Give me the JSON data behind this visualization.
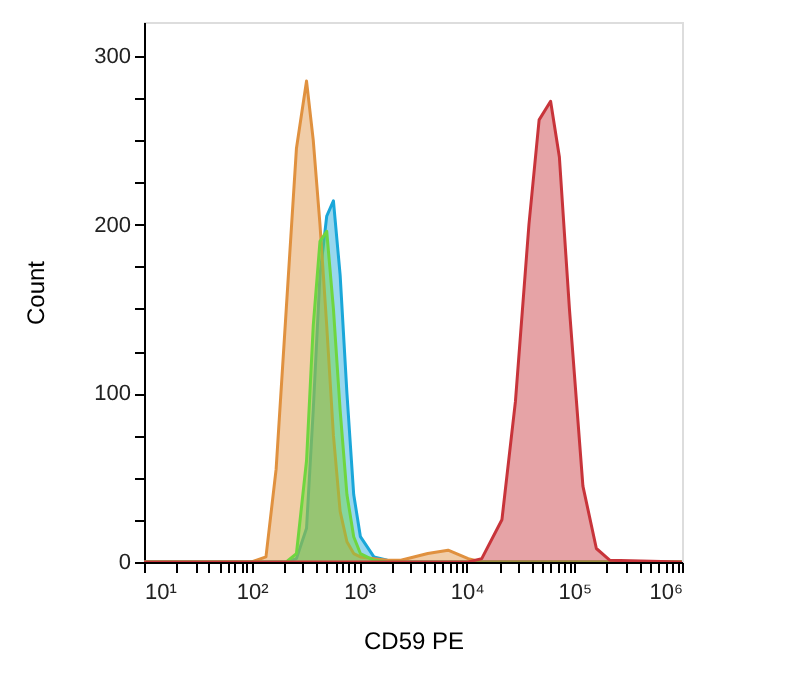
{
  "chart_data": {
    "type": "area",
    "xlabel": "CD59 PE",
    "ylabel": "Count",
    "log": "x",
    "grid": false,
    "x": [
      10,
      100,
      136,
      169,
      210,
      261,
      324,
      374,
      432,
      499,
      576,
      665,
      769,
      889,
      1026,
      1370,
      1829,
      2440,
      4340,
      6700,
      10300,
      13770,
      21200,
      28300,
      37800,
      47000,
      60100,
      72500,
      89900,
      120000,
      160000,
      214000,
      1000000
    ],
    "series": [
      {
        "color": "#1aa7d9",
        "values": [
          0,
          0,
          0,
          0,
          0,
          2,
          20,
          90,
          170,
          205,
          214,
          170,
          100,
          40,
          15,
          3,
          1,
          0,
          0,
          0,
          0,
          0,
          0,
          0,
          0,
          0,
          0,
          0,
          0,
          0,
          0,
          0,
          0
        ]
      },
      {
        "color": "#e0913f",
        "values": [
          0,
          0,
          3,
          55,
          150,
          245,
          285,
          250,
          200,
          140,
          75,
          30,
          12,
          5,
          3,
          2,
          1,
          1,
          5,
          7,
          2,
          0,
          0,
          0,
          0,
          0,
          0,
          0,
          0,
          0,
          0,
          0,
          0
        ]
      },
      {
        "color": "#6fd63f",
        "values": [
          0,
          0,
          0,
          0,
          0,
          5,
          60,
          140,
          190,
          196,
          150,
          90,
          40,
          15,
          5,
          1,
          0,
          0,
          0,
          0,
          0,
          0,
          0,
          0,
          0,
          0,
          0,
          0,
          0,
          0,
          0,
          0,
          0
        ]
      },
      {
        "color": "#c8343a",
        "values": [
          0,
          0,
          0,
          0,
          0,
          0,
          0,
          0,
          0,
          0,
          0,
          0,
          0,
          0,
          0,
          0,
          0,
          0,
          0,
          0,
          0,
          2,
          25,
          95,
          200,
          262,
          273,
          240,
          150,
          45,
          8,
          1,
          0
        ]
      }
    ],
    "xlim": [
      10,
      1000000
    ],
    "xticks": [
      {
        "value": 10,
        "label": "10¹"
      },
      {
        "value": 20,
        "label": null
      },
      {
        "value": 30,
        "label": null
      },
      {
        "value": 40,
        "label": null
      },
      {
        "value": 50,
        "label": null
      },
      {
        "value": 60,
        "label": null
      },
      {
        "value": 70,
        "label": null
      },
      {
        "value": 80,
        "label": null
      },
      {
        "value": 90,
        "label": null
      },
      {
        "value": 100,
        "label": "10²"
      },
      {
        "value": 200,
        "label": null
      },
      {
        "value": 300,
        "label": null
      },
      {
        "value": 400,
        "label": null
      },
      {
        "value": 500,
        "label": null
      },
      {
        "value": 600,
        "label": null
      },
      {
        "value": 700,
        "label": null
      },
      {
        "value": 800,
        "label": null
      },
      {
        "value": 900,
        "label": null
      },
      {
        "value": 1000,
        "label": "10³"
      },
      {
        "value": 2000,
        "label": null
      },
      {
        "value": 3000,
        "label": null
      },
      {
        "value": 4000,
        "label": null
      },
      {
        "value": 5000,
        "label": null
      },
      {
        "value": 6000,
        "label": null
      },
      {
        "value": 7000,
        "label": null
      },
      {
        "value": 8000,
        "label": null
      },
      {
        "value": 9000,
        "label": null
      },
      {
        "value": 10000,
        "label": "10⁴"
      },
      {
        "value": 20000,
        "label": null
      },
      {
        "value": 30000,
        "label": null
      },
      {
        "value": 40000,
        "label": null
      },
      {
        "value": 50000,
        "label": null
      },
      {
        "value": 60000,
        "label": null
      },
      {
        "value": 70000,
        "label": null
      },
      {
        "value": 80000,
        "label": null
      },
      {
        "value": 90000,
        "label": null
      },
      {
        "value": 100000,
        "label": "10⁵"
      },
      {
        "value": 200000,
        "label": null
      },
      {
        "value": 300000,
        "label": null
      },
      {
        "value": 400000,
        "label": null
      },
      {
        "value": 500000,
        "label": null
      },
      {
        "value": 600000,
        "label": null
      },
      {
        "value": 700000,
        "label": null
      },
      {
        "value": 800000,
        "label": null
      },
      {
        "value": 900000,
        "label": null
      },
      {
        "value": 1000000,
        "label": "10⁶"
      }
    ],
    "ylim": [
      0,
      320
    ],
    "yticks": [
      0,
      {
        "value": 25,
        "label": null
      },
      {
        "value": 50,
        "label": null
      },
      {
        "value": 75,
        "label": null
      },
      100,
      {
        "value": 125,
        "label": null
      },
      {
        "value": 150,
        "label": null
      },
      {
        "value": 175,
        "label": null
      },
      200,
      {
        "value": 225,
        "label": null
      },
      {
        "value": 250,
        "label": null
      },
      {
        "value": 275,
        "label": null
      },
      300
    ]
  }
}
